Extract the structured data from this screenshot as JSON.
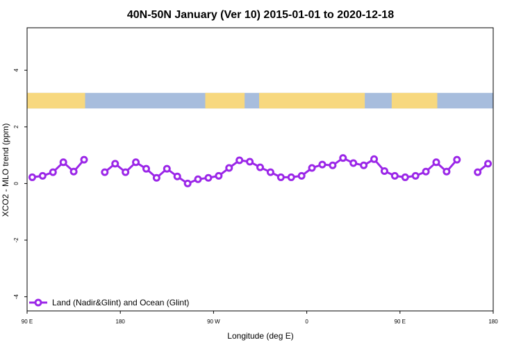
{
  "chart_data": {
    "type": "line",
    "title": "40N-50N January (Ver 10)   2015-01-01 to 2020-12-18",
    "xlabel": "Longitude (deg E)",
    "ylabel": "XCO2 - MLO trend (ppm)",
    "xlim": [
      90,
      540
    ],
    "ylim": [
      -4.5,
      5.5
    ],
    "x_ticks": [
      {
        "value": 90,
        "label": "90 E"
      },
      {
        "value": 180,
        "label": "180"
      },
      {
        "value": 270,
        "label": "90 W"
      },
      {
        "value": 360,
        "label": "0"
      },
      {
        "value": 450,
        "label": "90 E"
      },
      {
        "value": 540,
        "label": "180"
      }
    ],
    "y_ticks": [
      {
        "value": -4,
        "label": "-4"
      },
      {
        "value": -2,
        "label": "-2"
      },
      {
        "value": 0,
        "label": "0"
      },
      {
        "value": 2,
        "label": "2"
      },
      {
        "value": 4,
        "label": "4"
      }
    ],
    "map_band": {
      "ymin": 2.65,
      "ymax": 3.2,
      "land_color": "#f7d87e",
      "ocean_color": "#a7bddd"
    },
    "grid": false,
    "legend_position": "bottom-left",
    "series": [
      {
        "name": "Land (Nadir&Glint) and Ocean (Glint)",
        "color": "#9b27e8",
        "segments": [
          [
            [
              95,
              0.22
            ],
            [
              105,
              0.27
            ],
            [
              115,
              0.4
            ],
            [
              125,
              0.75
            ],
            [
              135,
              0.42
            ],
            [
              145,
              0.84
            ]
          ],
          [
            [
              165,
              0.4
            ],
            [
              175,
              0.7
            ],
            [
              185,
              0.4
            ],
            [
              195,
              0.75
            ],
            [
              205,
              0.52
            ],
            [
              215,
              0.2
            ],
            [
              225,
              0.52
            ],
            [
              235,
              0.25
            ],
            [
              245,
              0.0
            ],
            [
              255,
              0.15
            ],
            [
              265,
              0.2
            ],
            [
              275,
              0.27
            ],
            [
              285,
              0.55
            ],
            [
              295,
              0.82
            ],
            [
              305,
              0.77
            ],
            [
              315,
              0.57
            ],
            [
              325,
              0.4
            ],
            [
              335,
              0.22
            ],
            [
              345,
              0.22
            ],
            [
              355,
              0.27
            ],
            [
              365,
              0.55
            ],
            [
              375,
              0.67
            ],
            [
              385,
              0.64
            ],
            [
              395,
              0.9
            ],
            [
              405,
              0.72
            ],
            [
              415,
              0.64
            ],
            [
              425,
              0.86
            ],
            [
              435,
              0.44
            ],
            [
              445,
              0.27
            ],
            [
              455,
              0.22
            ],
            [
              465,
              0.27
            ],
            [
              475,
              0.42
            ],
            [
              485,
              0.75
            ],
            [
              495,
              0.42
            ],
            [
              505,
              0.84
            ]
          ],
          [
            [
              525,
              0.4
            ],
            [
              535,
              0.7
            ]
          ]
        ]
      }
    ]
  }
}
